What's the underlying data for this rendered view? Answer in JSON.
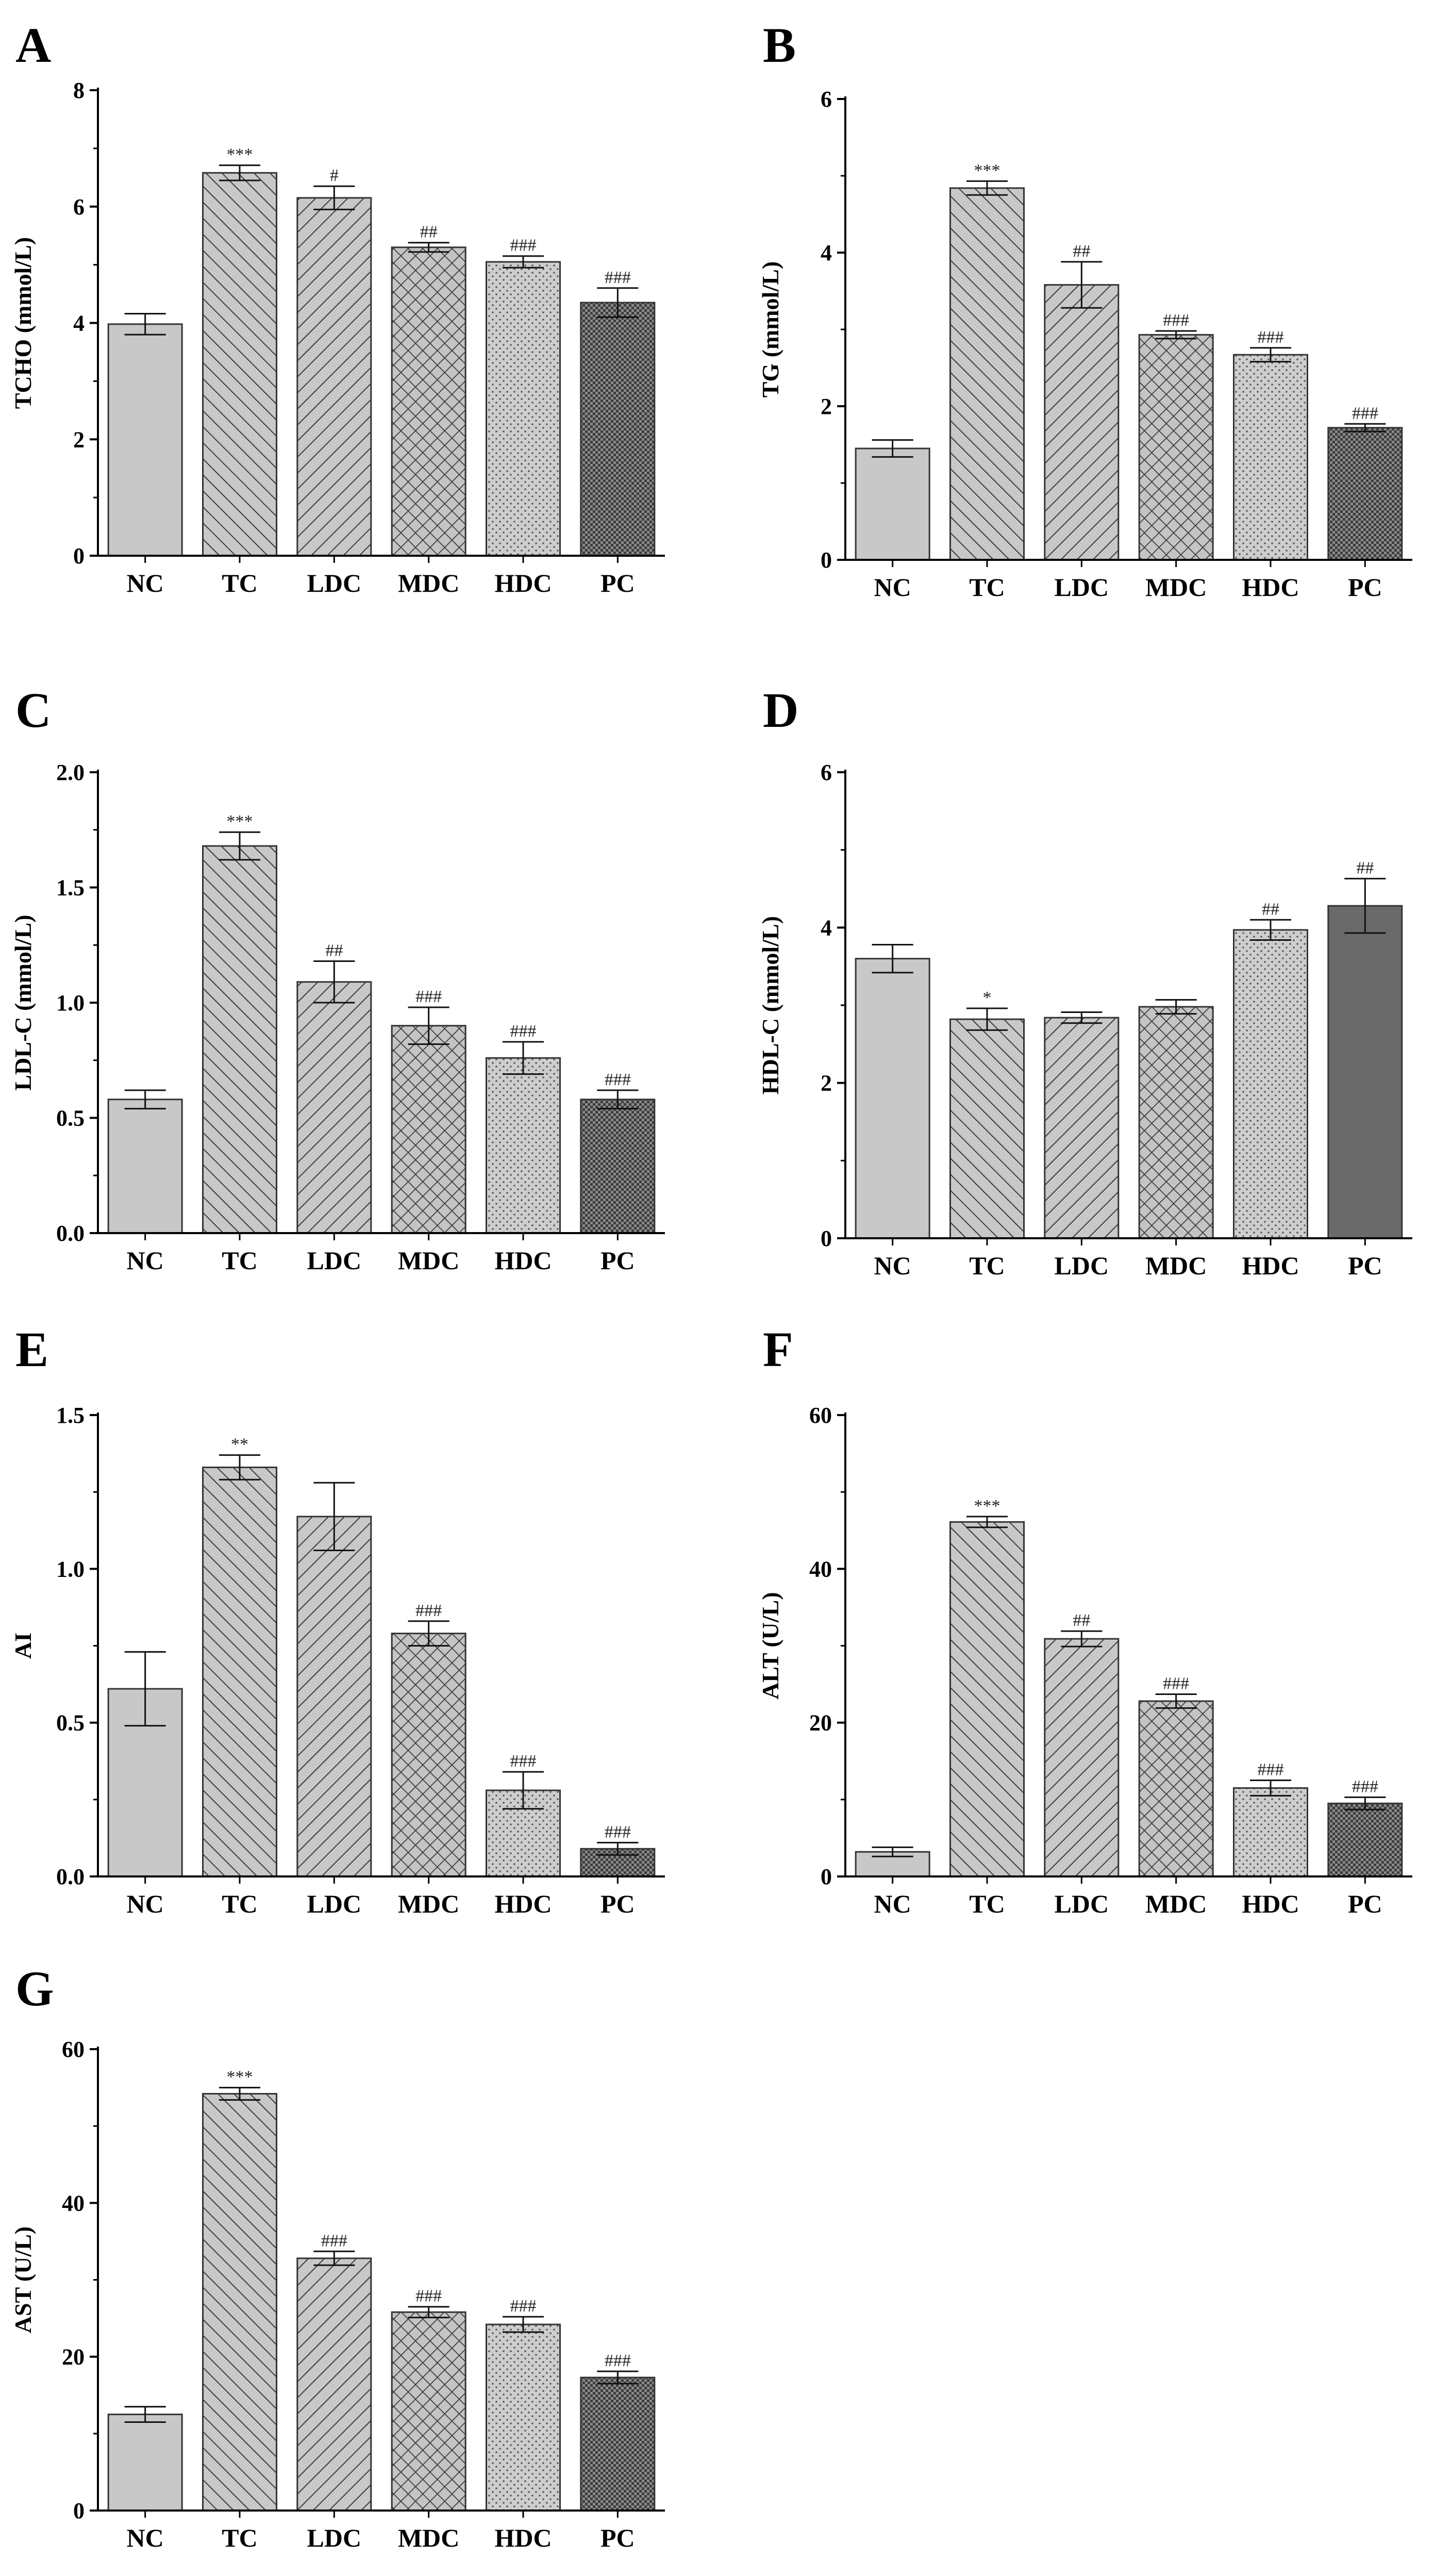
{
  "figure": {
    "colors": {
      "bar_fill": "#c8c8c8",
      "bar_dark": "#7a7a7a",
      "pc_fill": "#6a6a6a",
      "hatch": "#3c3c3c",
      "axis": "#000000"
    },
    "bar_styles": [
      "solid",
      "diag-right",
      "diag-left",
      "crosshatch",
      "dots",
      "dense-check"
    ]
  },
  "chart_data": [
    {
      "panel": "A",
      "type": "bar",
      "ylabel": "TCHO (mmol/L)",
      "xlabel": "",
      "categories": [
        "NC",
        "TC",
        "LDC",
        "MDC",
        "HDC",
        "PC"
      ],
      "values": [
        3.98,
        6.58,
        6.15,
        5.3,
        5.05,
        4.35
      ],
      "errors": [
        0.18,
        0.13,
        0.2,
        0.08,
        0.1,
        0.25
      ],
      "significance": [
        "",
        "***",
        "#",
        "##",
        "###",
        "###"
      ],
      "ylim": [
        0,
        8
      ],
      "yticks": [
        "0",
        "2",
        "4",
        "6",
        "8"
      ]
    },
    {
      "panel": "B",
      "type": "bar",
      "ylabel": "TG (mmol/L)",
      "xlabel": "",
      "categories": [
        "NC",
        "TC",
        "LDC",
        "MDC",
        "HDC",
        "PC"
      ],
      "values": [
        1.45,
        4.84,
        3.58,
        2.93,
        2.67,
        1.72
      ],
      "errors": [
        0.11,
        0.09,
        0.3,
        0.05,
        0.09,
        0.05
      ],
      "significance": [
        "",
        "***",
        "##",
        "###",
        "###",
        "###"
      ],
      "ylim": [
        0,
        6
      ],
      "yticks": [
        "0",
        "2",
        "4",
        "6"
      ]
    },
    {
      "panel": "C",
      "type": "bar",
      "ylabel": "LDL-C (mmol/L)",
      "xlabel": "",
      "categories": [
        "NC",
        "TC",
        "LDC",
        "MDC",
        "HDC",
        "PC"
      ],
      "values": [
        0.58,
        1.68,
        1.09,
        0.9,
        0.76,
        0.58
      ],
      "errors": [
        0.04,
        0.06,
        0.09,
        0.08,
        0.07,
        0.04
      ],
      "significance": [
        "",
        "***",
        "##",
        "###",
        "###",
        "###"
      ],
      "ylim": [
        0,
        2
      ],
      "yticks": [
        "0.0",
        "0.5",
        "1.0",
        "1.5",
        "2.0"
      ]
    },
    {
      "panel": "D",
      "type": "bar",
      "ylabel": "HDL-C (mmol/L)",
      "xlabel": "",
      "categories": [
        "NC",
        "TC",
        "LDC",
        "MDC",
        "HDC",
        "PC"
      ],
      "values": [
        3.6,
        2.82,
        2.84,
        2.98,
        3.97,
        4.28
      ],
      "errors": [
        0.18,
        0.14,
        0.07,
        0.09,
        0.13,
        0.35
      ],
      "significance": [
        "",
        "*",
        "",
        "",
        "##",
        "##"
      ],
      "ylim": [
        0,
        6
      ],
      "yticks": [
        "0",
        "2",
        "4",
        "6"
      ]
    },
    {
      "panel": "E",
      "type": "bar",
      "ylabel": "AI",
      "xlabel": "",
      "categories": [
        "NC",
        "TC",
        "LDC",
        "MDC",
        "HDC",
        "PC"
      ],
      "values": [
        0.61,
        1.33,
        1.17,
        0.79,
        0.28,
        0.09
      ],
      "errors": [
        0.12,
        0.04,
        0.11,
        0.04,
        0.06,
        0.02
      ],
      "significance": [
        "",
        "**",
        "",
        "###",
        "###",
        "###"
      ],
      "ylim": [
        0,
        1.5
      ],
      "yticks": [
        "0.0",
        "0.5",
        "1.0",
        "1.5"
      ]
    },
    {
      "panel": "F",
      "type": "bar",
      "ylabel": "ALT (U/L)",
      "xlabel": "",
      "categories": [
        "NC",
        "TC",
        "LDC",
        "MDC",
        "HDC",
        "PC"
      ],
      "values": [
        3.2,
        46.1,
        30.9,
        22.8,
        11.5,
        9.5
      ],
      "errors": [
        0.6,
        0.7,
        1.0,
        0.9,
        1.0,
        0.8
      ],
      "significance": [
        "",
        "***",
        "##",
        "###",
        "###",
        "###"
      ],
      "ylim": [
        0,
        60
      ],
      "yticks": [
        "0",
        "20",
        "40",
        "60"
      ]
    },
    {
      "panel": "G",
      "type": "bar",
      "ylabel": "AST (U/L)",
      "xlabel": "",
      "categories": [
        "NC",
        "TC",
        "LDC",
        "MDC",
        "HDC",
        "PC"
      ],
      "values": [
        12.5,
        54.2,
        32.8,
        25.8,
        24.2,
        17.3
      ],
      "errors": [
        1.0,
        0.8,
        0.9,
        0.7,
        1.0,
        0.8
      ],
      "significance": [
        "",
        "***",
        "###",
        "###",
        "###",
        "###"
      ],
      "ylim": [
        0,
        60
      ],
      "yticks": [
        "0",
        "20",
        "40",
        "60"
      ]
    }
  ]
}
